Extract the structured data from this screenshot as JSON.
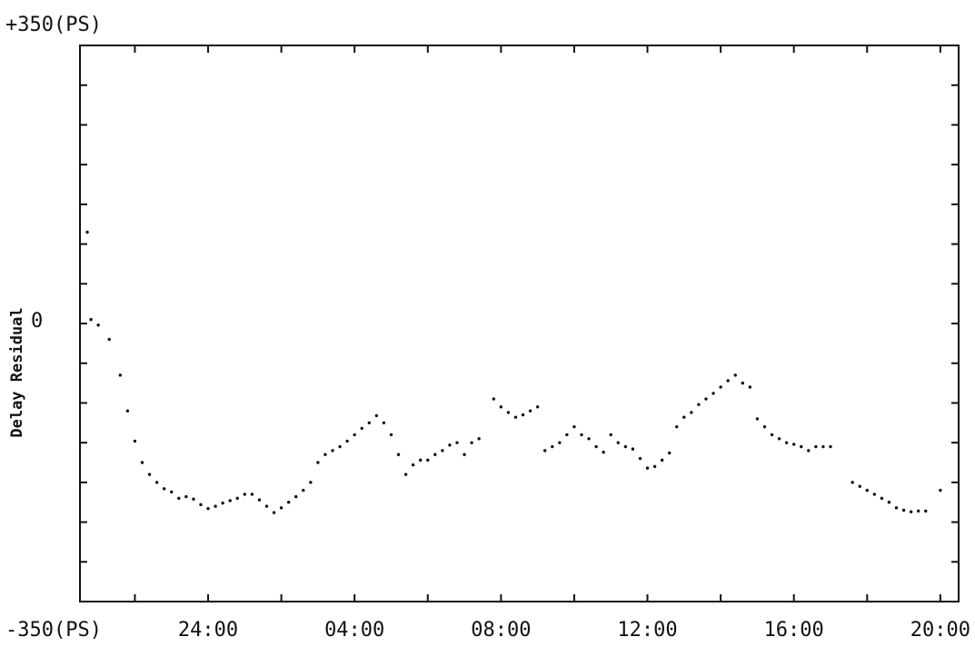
{
  "chart_data": {
    "type": "scatter",
    "ylabel": "Delay Residual",
    "y_top_label": "+350(PS)",
    "y_bottom_label": "-350(PS)",
    "y_zero_label": "0",
    "ylim": [
      -350,
      350
    ],
    "x_hours_range": [
      20.5,
      44.5
    ],
    "x_ticks": [
      {
        "label": "24:00",
        "h": 24
      },
      {
        "label": "04:00",
        "h": 28
      },
      {
        "label": "08:00",
        "h": 32
      },
      {
        "label": "12:00",
        "h": 36
      },
      {
        "label": "16:00",
        "h": 40
      },
      {
        "label": "20:00",
        "h": 44
      }
    ],
    "grid": false,
    "point_color": "#111111",
    "points": [
      {
        "h": 20.7,
        "v": 115
      },
      {
        "h": 20.8,
        "v": 5
      },
      {
        "h": 21.0,
        "v": -2
      },
      {
        "h": 21.3,
        "v": -20
      },
      {
        "h": 21.6,
        "v": -65
      },
      {
        "h": 21.8,
        "v": -110
      },
      {
        "h": 22.0,
        "v": -148
      },
      {
        "h": 22.2,
        "v": -175
      },
      {
        "h": 22.4,
        "v": -190
      },
      {
        "h": 22.6,
        "v": -200
      },
      {
        "h": 22.8,
        "v": -208
      },
      {
        "h": 23.0,
        "v": -212
      },
      {
        "h": 23.2,
        "v": -220
      },
      {
        "h": 23.4,
        "v": -218
      },
      {
        "h": 23.6,
        "v": -221
      },
      {
        "h": 23.8,
        "v": -228
      },
      {
        "h": 24.0,
        "v": -233
      },
      {
        "h": 24.2,
        "v": -230
      },
      {
        "h": 24.4,
        "v": -226
      },
      {
        "h": 24.6,
        "v": -223
      },
      {
        "h": 24.8,
        "v": -220
      },
      {
        "h": 25.0,
        "v": -215
      },
      {
        "h": 25.2,
        "v": -215
      },
      {
        "h": 25.4,
        "v": -222
      },
      {
        "h": 25.6,
        "v": -230
      },
      {
        "h": 25.8,
        "v": -238
      },
      {
        "h": 26.0,
        "v": -232
      },
      {
        "h": 26.2,
        "v": -225
      },
      {
        "h": 26.4,
        "v": -218
      },
      {
        "h": 26.6,
        "v": -210
      },
      {
        "h": 26.8,
        "v": -200
      },
      {
        "h": 27.0,
        "v": -175
      },
      {
        "h": 27.2,
        "v": -165
      },
      {
        "h": 27.4,
        "v": -160
      },
      {
        "h": 27.6,
        "v": -155
      },
      {
        "h": 27.8,
        "v": -148
      },
      {
        "h": 28.0,
        "v": -140
      },
      {
        "h": 28.2,
        "v": -132
      },
      {
        "h": 28.4,
        "v": -125
      },
      {
        "h": 28.6,
        "v": -116
      },
      {
        "h": 28.8,
        "v": -125
      },
      {
        "h": 29.0,
        "v": -140
      },
      {
        "h": 29.2,
        "v": -165
      },
      {
        "h": 29.4,
        "v": -190
      },
      {
        "h": 29.6,
        "v": -178
      },
      {
        "h": 29.8,
        "v": -172
      },
      {
        "h": 30.0,
        "v": -172
      },
      {
        "h": 30.2,
        "v": -165
      },
      {
        "h": 30.4,
        "v": -160
      },
      {
        "h": 30.6,
        "v": -153
      },
      {
        "h": 30.8,
        "v": -150
      },
      {
        "h": 31.0,
        "v": -165
      },
      {
        "h": 31.2,
        "v": -150
      },
      {
        "h": 31.4,
        "v": -145
      },
      {
        "h": 31.8,
        "v": -95
      },
      {
        "h": 32.0,
        "v": -105
      },
      {
        "h": 32.2,
        "v": -112
      },
      {
        "h": 32.4,
        "v": -118
      },
      {
        "h": 32.6,
        "v": -115
      },
      {
        "h": 32.8,
        "v": -110
      },
      {
        "h": 33.0,
        "v": -105
      },
      {
        "h": 33.2,
        "v": -160
      },
      {
        "h": 33.4,
        "v": -155
      },
      {
        "h": 33.6,
        "v": -150
      },
      {
        "h": 33.8,
        "v": -140
      },
      {
        "h": 34.0,
        "v": -130
      },
      {
        "h": 34.2,
        "v": -140
      },
      {
        "h": 34.4,
        "v": -145
      },
      {
        "h": 34.6,
        "v": -155
      },
      {
        "h": 34.8,
        "v": -162
      },
      {
        "h": 35.0,
        "v": -140
      },
      {
        "h": 35.2,
        "v": -150
      },
      {
        "h": 35.4,
        "v": -155
      },
      {
        "h": 35.6,
        "v": -158
      },
      {
        "h": 35.8,
        "v": -170
      },
      {
        "h": 36.0,
        "v": -182
      },
      {
        "h": 36.2,
        "v": -180
      },
      {
        "h": 36.4,
        "v": -172
      },
      {
        "h": 36.6,
        "v": -163
      },
      {
        "h": 36.8,
        "v": -130
      },
      {
        "h": 37.0,
        "v": -118
      },
      {
        "h": 37.2,
        "v": -112
      },
      {
        "h": 37.4,
        "v": -102
      },
      {
        "h": 37.6,
        "v": -95
      },
      {
        "h": 37.8,
        "v": -88
      },
      {
        "h": 38.0,
        "v": -80
      },
      {
        "h": 38.2,
        "v": -72
      },
      {
        "h": 38.4,
        "v": -65
      },
      {
        "h": 38.6,
        "v": -75
      },
      {
        "h": 38.8,
        "v": -80
      },
      {
        "h": 39.0,
        "v": -120
      },
      {
        "h": 39.2,
        "v": -130
      },
      {
        "h": 39.4,
        "v": -140
      },
      {
        "h": 39.6,
        "v": -145
      },
      {
        "h": 39.8,
        "v": -150
      },
      {
        "h": 40.0,
        "v": -152
      },
      {
        "h": 40.2,
        "v": -155
      },
      {
        "h": 40.4,
        "v": -160
      },
      {
        "h": 40.6,
        "v": -155
      },
      {
        "h": 40.8,
        "v": -155
      },
      {
        "h": 41.0,
        "v": -155
      },
      {
        "h": 41.6,
        "v": -200
      },
      {
        "h": 41.8,
        "v": -205
      },
      {
        "h": 42.0,
        "v": -210
      },
      {
        "h": 42.2,
        "v": -215
      },
      {
        "h": 42.4,
        "v": -220
      },
      {
        "h": 42.6,
        "v": -225
      },
      {
        "h": 42.8,
        "v": -232
      },
      {
        "h": 43.0,
        "v": -235
      },
      {
        "h": 43.2,
        "v": -237
      },
      {
        "h": 43.4,
        "v": -236
      },
      {
        "h": 43.6,
        "v": -236
      },
      {
        "h": 44.0,
        "v": -210
      }
    ]
  }
}
